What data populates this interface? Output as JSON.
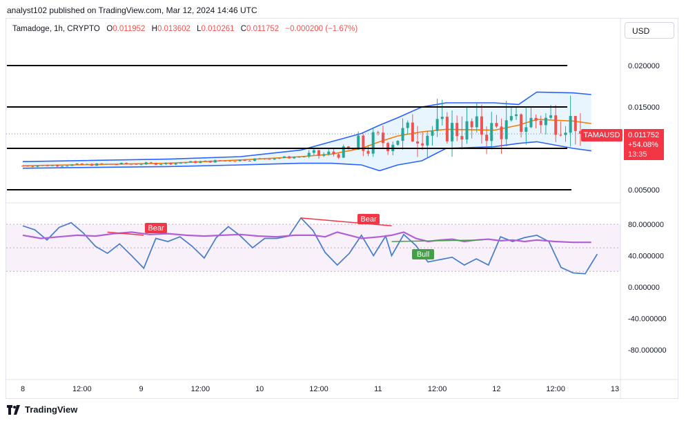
{
  "header": {
    "published": "analyst102 published on TradingView.com, Mar 12, 2024 14:46 UTC"
  },
  "legend": {
    "symbol": "Tamadoge, 1h, CRYPTO",
    "open_label": "O",
    "open": "0.011952",
    "high_label": "H",
    "high": "0.013602",
    "low_label": "L",
    "low": "0.010261",
    "close_label": "C",
    "close": "0.011752",
    "change": "−0.000200 (−1.67%)"
  },
  "currency_button": "USD",
  "price_tag": {
    "symbol": "TAMAUSD",
    "price": "0.011752",
    "change": "+54.08%",
    "countdown": "13:35"
  },
  "price_axis": [
    "0.020000",
    "0.015000",
    "0.005000"
  ],
  "osc_axis": [
    "80.000000",
    "40.000000",
    "0.000000",
    "-40.000000",
    "-80.000000"
  ],
  "time_axis": [
    "8",
    "12:00",
    "9",
    "12:00",
    "10",
    "12:00",
    "11",
    "12:00",
    "12",
    "12:00",
    "13"
  ],
  "signals": {
    "bear1": "Bear",
    "bear2": "Bear",
    "bull": "Bull"
  },
  "footer": {
    "brand": "TradingView"
  },
  "colors": {
    "up": "#26a69a",
    "down": "#ef5350",
    "band": "#2962ff",
    "basis": "#f57c00",
    "stoch_k": "#4a7fcb",
    "rsi": "#b05fd4",
    "bear": "#f23645",
    "bull": "#43a047"
  },
  "chart_data": [
    {
      "type": "candlestick",
      "title": "Tamadoge, 1h, CRYPTO",
      "ylim": [
        0.0025,
        0.0225
      ],
      "horizontal_levels": [
        0.02,
        0.015,
        0.01,
        0.005
      ],
      "x_range": [
        "Mar 8 00:00",
        "Mar 13 00:00"
      ],
      "summary": {
        "open": 0.011952,
        "high": 0.013602,
        "low": 0.010261,
        "close": 0.011752
      },
      "bands": {
        "upper": [
          [
            0,
            0.0084
          ],
          [
            48,
            0.0087
          ],
          [
            72,
            0.009
          ],
          [
            92,
            0.0098
          ],
          [
            102,
            0.0108
          ],
          [
            112,
            0.0118
          ],
          [
            118,
            0.0128
          ],
          [
            124,
            0.0137
          ],
          [
            132,
            0.015
          ],
          [
            140,
            0.0155
          ],
          [
            156,
            0.0155
          ],
          [
            164,
            0.0153
          ],
          [
            170,
            0.0168
          ],
          [
            182,
            0.0167
          ],
          [
            188,
            0.0165
          ]
        ],
        "basis": [
          [
            0,
            0.0079
          ],
          [
            48,
            0.0082
          ],
          [
            72,
            0.0086
          ],
          [
            92,
            0.009
          ],
          [
            102,
            0.0093
          ],
          [
            112,
            0.01
          ],
          [
            118,
            0.0108
          ],
          [
            124,
            0.0115
          ],
          [
            132,
            0.012
          ],
          [
            140,
            0.0123
          ],
          [
            156,
            0.0122
          ],
          [
            164,
            0.0128
          ],
          [
            170,
            0.0135
          ],
          [
            182,
            0.0133
          ],
          [
            188,
            0.013
          ]
        ],
        "lower": [
          [
            0,
            0.0076
          ],
          [
            48,
            0.0078
          ],
          [
            72,
            0.008
          ],
          [
            92,
            0.0082
          ],
          [
            102,
            0.0082
          ],
          [
            112,
            0.008
          ],
          [
            118,
            0.0073
          ],
          [
            124,
            0.008
          ],
          [
            132,
            0.0085
          ],
          [
            140,
            0.01
          ],
          [
            156,
            0.0102
          ],
          [
            164,
            0.0106
          ],
          [
            170,
            0.0108
          ],
          [
            182,
            0.01
          ],
          [
            188,
            0.0097
          ]
        ]
      },
      "candles_desc": "hourly OHLC, rising from ~0.008 to range 0.010–0.020"
    },
    {
      "type": "line",
      "title": "",
      "ylim": [
        -100,
        100
      ],
      "band": [
        20,
        80
      ],
      "series": [
        {
          "values": [
            [
              0,
              66
            ],
            [
              6,
              62
            ],
            [
              12,
              64
            ],
            [
              18,
              66
            ],
            [
              24,
              65
            ],
            [
              30,
              68
            ],
            [
              36,
              70
            ],
            [
              42,
              67
            ],
            [
              48,
              68
            ],
            [
              54,
              66
            ],
            [
              60,
              65
            ],
            [
              66,
              66
            ],
            [
              72,
              67
            ],
            [
              78,
              65
            ],
            [
              84,
              64
            ],
            [
              90,
              66
            ],
            [
              96,
              66
            ],
            [
              100,
              64
            ],
            [
              104,
              70
            ],
            [
              108,
              66
            ],
            [
              112,
              62
            ],
            [
              118,
              64
            ],
            [
              122,
              66
            ],
            [
              126,
              70
            ],
            [
              130,
              62
            ],
            [
              134,
              58
            ],
            [
              138,
              60
            ],
            [
              142,
              61
            ],
            [
              146,
              58
            ],
            [
              150,
              60
            ],
            [
              154,
              61
            ],
            [
              158,
              59
            ],
            [
              162,
              60
            ],
            [
              166,
              58
            ],
            [
              170,
              60
            ],
            [
              176,
              58
            ],
            [
              182,
              57
            ],
            [
              188,
              57
            ]
          ]
        },
        {
          "values": [
            [
              0,
              78
            ],
            [
              4,
              73
            ],
            [
              8,
              60
            ],
            [
              12,
              76
            ],
            [
              16,
              82
            ],
            [
              20,
              69
            ],
            [
              24,
              52
            ],
            [
              28,
              43
            ],
            [
              32,
              55
            ],
            [
              36,
              40
            ],
            [
              40,
              24
            ],
            [
              44,
              62
            ],
            [
              48,
              58
            ],
            [
              52,
              64
            ],
            [
              56,
              52
            ],
            [
              60,
              37
            ],
            [
              64,
              63
            ],
            [
              68,
              77
            ],
            [
              72,
              65
            ],
            [
              76,
              50
            ],
            [
              80,
              62
            ],
            [
              84,
              62
            ],
            [
              88,
              65
            ],
            [
              92,
              88
            ],
            [
              96,
              72
            ],
            [
              100,
              44
            ],
            [
              104,
              28
            ],
            [
              108,
              43
            ],
            [
              112,
              66
            ],
            [
              116,
              40
            ],
            [
              120,
              65
            ],
            [
              122,
              40
            ],
            [
              126,
              67
            ],
            [
              130,
              53
            ],
            [
              134,
              32
            ],
            [
              138,
              35
            ],
            [
              142,
              38
            ],
            [
              146,
              28
            ],
            [
              150,
              36
            ],
            [
              154,
              28
            ],
            [
              158,
              64
            ],
            [
              162,
              58
            ],
            [
              166,
              63
            ],
            [
              170,
              66
            ],
            [
              174,
              58
            ],
            [
              178,
              25
            ],
            [
              182,
              18
            ],
            [
              186,
              17
            ],
            [
              190,
              42
            ]
          ]
        }
      ],
      "annotations": [
        "Bear",
        "Bear",
        "Bull"
      ]
    }
  ]
}
